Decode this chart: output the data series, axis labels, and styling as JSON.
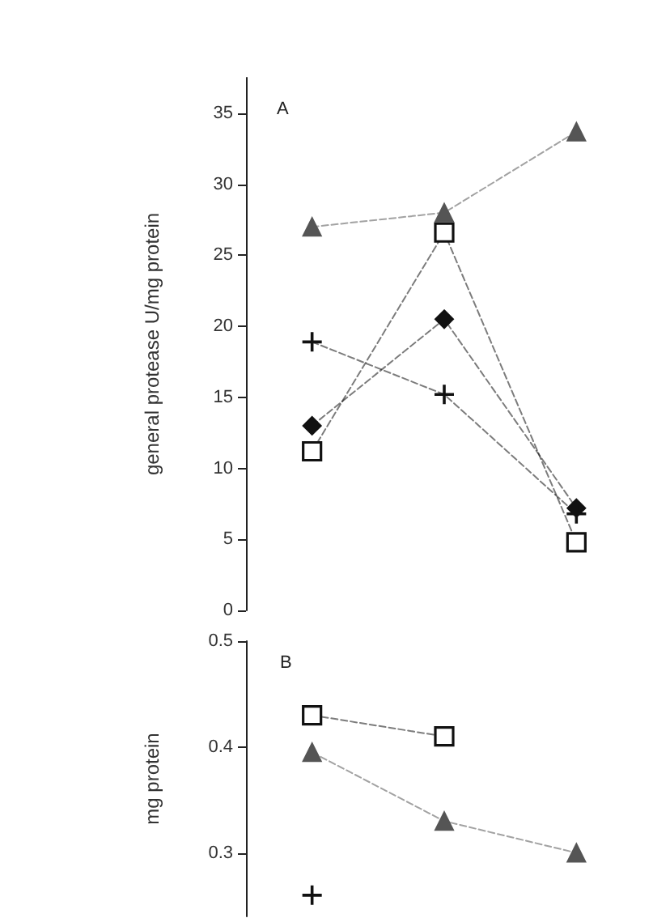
{
  "chart_data": [
    {
      "type": "line",
      "annotations": [
        "A"
      ],
      "ylabel": "general protease U/mg protein",
      "categories": [
        null,
        null,
        null
      ],
      "ylim": [
        0,
        37.5
      ],
      "yticks": [
        0,
        5,
        10,
        15,
        20,
        25,
        30,
        35
      ],
      "tick_labels": "y",
      "grid": false,
      "line_style": "dashed",
      "series": [
        {
          "color": "#555555",
          "marker": "triangle",
          "values": [
            27,
            28,
            33.7
          ]
        },
        {
          "color": "#111111",
          "marker": "square",
          "values": [
            11.2,
            26.6,
            4.8
          ]
        },
        {
          "color": "#111111",
          "marker": "diamond",
          "values": [
            13,
            20.5,
            7.2
          ]
        },
        {
          "color": "#111111",
          "marker": "cross",
          "values": [
            18.9,
            15.2,
            6.8
          ]
        }
      ]
    },
    {
      "type": "line",
      "annotations": [
        "B"
      ],
      "ylabel": "mg protein",
      "categories": [
        null,
        null,
        null
      ],
      "ylim": [
        0.24,
        0.5
      ],
      "yticks": [
        0.3,
        0.4,
        0.5
      ],
      "tick_labels": "y",
      "grid": false,
      "line_style": "dashed",
      "series": [
        {
          "color": "#555555",
          "marker": "triangle",
          "values": [
            0.395,
            0.33,
            0.3
          ]
        },
        {
          "color": "#111111",
          "marker": "square",
          "values": [
            0.43,
            0.41,
            null
          ]
        },
        {
          "color": "#111111",
          "marker": "cross",
          "values": [
            0.26,
            null,
            null
          ]
        }
      ]
    }
  ]
}
